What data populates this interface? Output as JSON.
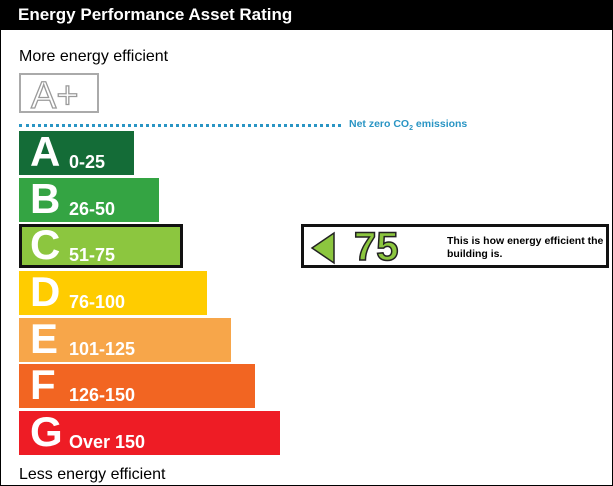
{
  "header": {
    "title": "Energy Performance Asset Rating"
  },
  "labels": {
    "more_efficient": "More energy efficient",
    "less_efficient": "Less energy efficient",
    "net_zero_pre": "Net zero CO",
    "net_zero_sub": "2",
    "net_zero_post": " emissions"
  },
  "aplus": {
    "label": "A+"
  },
  "bands": [
    {
      "letter": "A",
      "range": "0-25",
      "color": "#146c37"
    },
    {
      "letter": "B",
      "range": "26-50",
      "color": "#34a443"
    },
    {
      "letter": "C",
      "range": "51-75",
      "color": "#8cc63f"
    },
    {
      "letter": "D",
      "range": "76-100",
      "color": "#ffcc00"
    },
    {
      "letter": "E",
      "range": "101-125",
      "color": "#f7a64a"
    },
    {
      "letter": "F",
      "range": "126-150",
      "color": "#f26522"
    },
    {
      "letter": "G",
      "range": "Over 150",
      "color": "#ee1c25"
    }
  ],
  "current_band": "C",
  "indicator": {
    "score": "75",
    "text": "This is how energy efficient the building is.",
    "color": "#8cc63f"
  }
}
